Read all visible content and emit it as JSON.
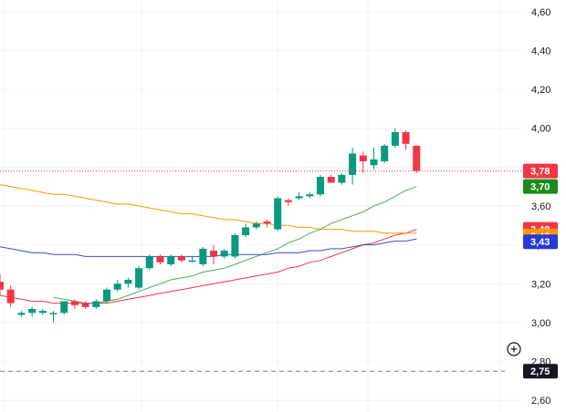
{
  "chart_data": {
    "type": "candlestick",
    "y_axis": {
      "ticks": [
        "2,60",
        "2,80",
        "3,00",
        "3,20",
        "3,40",
        "3,60",
        "3,80",
        "4,00",
        "4,20",
        "4,40",
        "4,60"
      ],
      "tick_values": [
        2.6,
        2.8,
        3.0,
        3.2,
        3.4,
        3.6,
        3.8,
        4.0,
        4.2,
        4.4,
        4.6
      ],
      "range": [
        2.54,
        4.66
      ],
      "position": "right"
    },
    "grid": true,
    "candles": [
      {
        "o": 3.21,
        "h": 3.25,
        "l": 3.14,
        "c": 3.17
      },
      {
        "o": 3.17,
        "h": 3.19,
        "l": 3.08,
        "c": 3.1
      },
      {
        "o": 3.04,
        "h": 3.06,
        "l": 3.03,
        "c": 3.05
      },
      {
        "o": 3.05,
        "h": 3.08,
        "l": 3.03,
        "c": 3.07
      },
      {
        "o": 3.05,
        "h": 3.07,
        "l": 3.04,
        "c": 3.06
      },
      {
        "o": 3.05,
        "h": 3.06,
        "l": 3.0,
        "c": 3.05
      },
      {
        "o": 3.05,
        "h": 3.11,
        "l": 3.04,
        "c": 3.11
      },
      {
        "o": 3.11,
        "h": 3.12,
        "l": 3.07,
        "c": 3.09
      },
      {
        "o": 3.1,
        "h": 3.11,
        "l": 3.07,
        "c": 3.08
      },
      {
        "o": 3.08,
        "h": 3.12,
        "l": 3.07,
        "c": 3.11
      },
      {
        "o": 3.11,
        "h": 3.18,
        "l": 3.1,
        "c": 3.17
      },
      {
        "o": 3.17,
        "h": 3.22,
        "l": 3.16,
        "c": 3.2
      },
      {
        "o": 3.2,
        "h": 3.23,
        "l": 3.18,
        "c": 3.22
      },
      {
        "o": 3.18,
        "h": 3.29,
        "l": 3.17,
        "c": 3.28
      },
      {
        "o": 3.28,
        "h": 3.35,
        "l": 3.27,
        "c": 3.34
      },
      {
        "o": 3.34,
        "h": 3.35,
        "l": 3.3,
        "c": 3.31
      },
      {
        "o": 3.3,
        "h": 3.35,
        "l": 3.29,
        "c": 3.34
      },
      {
        "o": 3.34,
        "h": 3.35,
        "l": 3.31,
        "c": 3.32
      },
      {
        "o": 3.32,
        "h": 3.34,
        "l": 3.31,
        "c": 3.32
      },
      {
        "o": 3.3,
        "h": 3.39,
        "l": 3.29,
        "c": 3.38
      },
      {
        "o": 3.37,
        "h": 3.4,
        "l": 3.3,
        "c": 3.34
      },
      {
        "o": 3.34,
        "h": 3.38,
        "l": 3.33,
        "c": 3.37
      },
      {
        "o": 3.34,
        "h": 3.46,
        "l": 3.33,
        "c": 3.45
      },
      {
        "o": 3.45,
        "h": 3.51,
        "l": 3.44,
        "c": 3.49
      },
      {
        "o": 3.49,
        "h": 3.52,
        "l": 3.48,
        "c": 3.51
      },
      {
        "o": 3.52,
        "h": 3.53,
        "l": 3.49,
        "c": 3.51
      },
      {
        "o": 3.48,
        "h": 3.65,
        "l": 3.47,
        "c": 3.64
      },
      {
        "o": 3.63,
        "h": 3.64,
        "l": 3.6,
        "c": 3.62
      },
      {
        "o": 3.64,
        "h": 3.67,
        "l": 3.63,
        "c": 3.65
      },
      {
        "o": 3.65,
        "h": 3.67,
        "l": 3.64,
        "c": 3.66
      },
      {
        "o": 3.66,
        "h": 3.76,
        "l": 3.65,
        "c": 3.75
      },
      {
        "o": 3.75,
        "h": 3.76,
        "l": 3.72,
        "c": 3.72
      },
      {
        "o": 3.72,
        "h": 3.77,
        "l": 3.71,
        "c": 3.76
      },
      {
        "o": 3.76,
        "h": 3.9,
        "l": 3.71,
        "c": 3.87
      },
      {
        "o": 3.86,
        "h": 3.88,
        "l": 3.77,
        "c": 3.83
      },
      {
        "o": 3.81,
        "h": 3.9,
        "l": 3.79,
        "c": 3.84
      },
      {
        "o": 3.83,
        "h": 3.92,
        "l": 3.82,
        "c": 3.91
      },
      {
        "o": 3.91,
        "h": 4.0,
        "l": 3.9,
        "c": 3.98
      },
      {
        "o": 3.98,
        "h": 3.99,
        "l": 3.89,
        "c": 3.92
      },
      {
        "o": 3.91,
        "h": 3.91,
        "l": 3.77,
        "c": 3.78
      }
    ],
    "moving_averages": [
      {
        "color": "#4caf50",
        "last_value": 3.7,
        "values": [
          null,
          null,
          null,
          null,
          null,
          3.13,
          3.12,
          3.11,
          3.1,
          3.1,
          3.11,
          3.12,
          3.14,
          3.16,
          3.18,
          3.2,
          3.22,
          3.23,
          3.24,
          3.26,
          3.27,
          3.28,
          3.3,
          3.32,
          3.34,
          3.36,
          3.38,
          3.41,
          3.43,
          3.46,
          3.48,
          3.51,
          3.53,
          3.55,
          3.57,
          3.6,
          3.62,
          3.65,
          3.68,
          3.7
        ]
      },
      {
        "color": "#f23645",
        "last_value": 3.48,
        "values": [
          3.14,
          3.13,
          3.12,
          3.11,
          3.11,
          3.1,
          3.1,
          3.1,
          3.1,
          3.1,
          3.1,
          3.11,
          3.12,
          3.13,
          3.14,
          3.15,
          3.16,
          3.17,
          3.18,
          3.19,
          3.2,
          3.21,
          3.22,
          3.23,
          3.24,
          3.25,
          3.26,
          3.28,
          3.29,
          3.31,
          3.32,
          3.34,
          3.36,
          3.38,
          3.4,
          3.41,
          3.43,
          3.45,
          3.46,
          3.48
        ]
      },
      {
        "color": "#ff9800",
        "last_value": 3.46,
        "values": [
          3.71,
          3.7,
          3.69,
          3.68,
          3.67,
          3.66,
          3.66,
          3.65,
          3.64,
          3.63,
          3.62,
          3.61,
          3.61,
          3.6,
          3.59,
          3.58,
          3.57,
          3.56,
          3.56,
          3.55,
          3.54,
          3.53,
          3.53,
          3.52,
          3.51,
          3.51,
          3.5,
          3.5,
          3.49,
          3.49,
          3.48,
          3.48,
          3.48,
          3.47,
          3.47,
          3.47,
          3.46,
          3.46,
          3.46,
          3.46
        ]
      },
      {
        "color": "#3f51b5",
        "last_value": 3.43,
        "values": [
          3.39,
          3.38,
          3.37,
          3.36,
          3.36,
          3.35,
          3.35,
          3.35,
          3.34,
          3.34,
          3.34,
          3.34,
          3.34,
          3.34,
          3.34,
          3.34,
          3.34,
          3.34,
          3.34,
          3.34,
          3.34,
          3.35,
          3.35,
          3.35,
          3.35,
          3.35,
          3.36,
          3.36,
          3.36,
          3.37,
          3.37,
          3.38,
          3.38,
          3.39,
          3.4,
          3.4,
          3.41,
          3.42,
          3.42,
          3.43
        ]
      }
    ],
    "last_price": {
      "label": "3,78",
      "value": 3.78,
      "color": "#f23645",
      "line_style": "dotted"
    },
    "crosshair": {
      "label": "2,75",
      "value": 2.75,
      "color": "#131722",
      "line_style": "dashed"
    },
    "price_badges": [
      {
        "label": "3,70",
        "value": 3.7,
        "color": "#1b8a1b"
      },
      {
        "label": "3,48",
        "value": 3.48,
        "color": "#f23645"
      },
      {
        "label": "3,46",
        "value": 3.46,
        "color": "#ff9800"
      },
      {
        "label": "3,43",
        "value": 3.43,
        "color": "#2a3ad6"
      }
    ],
    "colors": {
      "up": "#089981",
      "down": "#f23645",
      "grid": "#f0f3fa",
      "axis_text": "#131722"
    }
  },
  "toolbar": {
    "crosshair_add_icon": "plus-circle-icon"
  }
}
